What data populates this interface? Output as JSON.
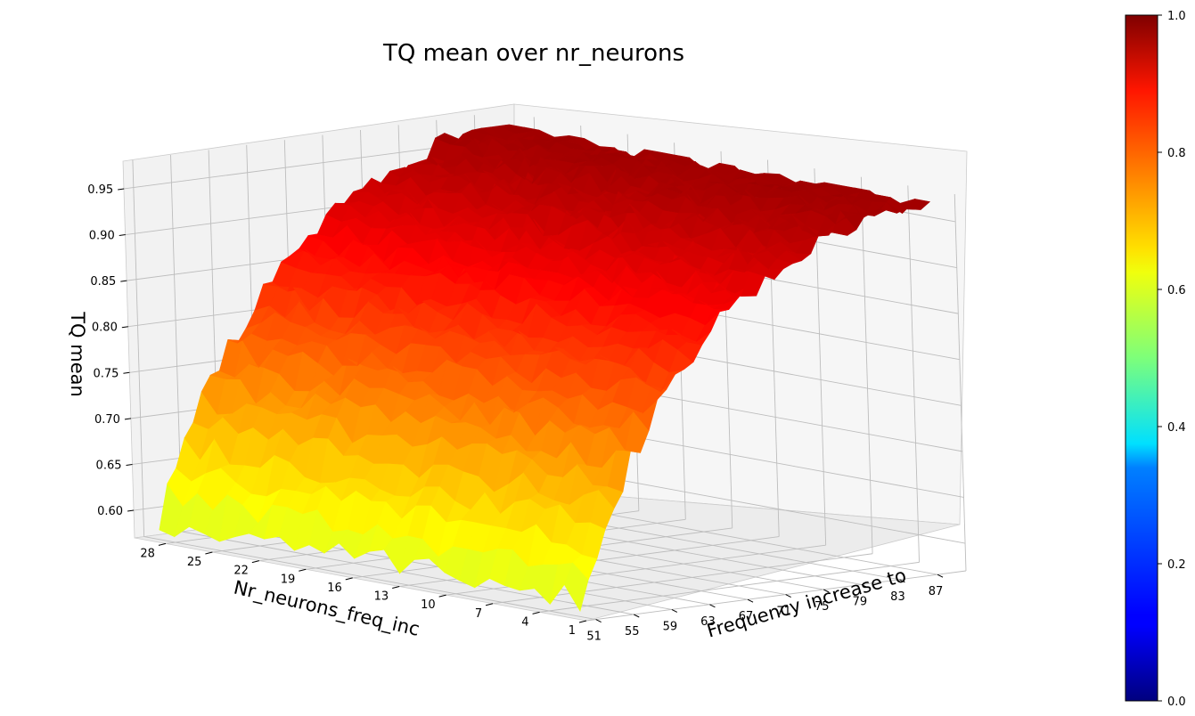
{
  "chart_data": {
    "type": "surface3d",
    "title": "TQ mean over nr_neurons",
    "xlabel": "Nr_neurons_freq_inc",
    "ylabel": "Frequency increase to",
    "zlabel": "TQ mean",
    "x_ticks": [
      "28",
      "25",
      "22",
      "19",
      "16",
      "13",
      "10",
      "7",
      "4",
      "1"
    ],
    "y_ticks": [
      "51",
      "55",
      "59",
      "63",
      "67",
      "71",
      "75",
      "79",
      "83",
      "87"
    ],
    "z_ticks": [
      "0.60",
      "0.65",
      "0.70",
      "0.75",
      "0.80",
      "0.85",
      "0.90",
      "0.95"
    ],
    "xlim": [
      1,
      30
    ],
    "ylim": [
      50,
      90
    ],
    "zlim": [
      0.57,
      0.98
    ],
    "colormap": "jet",
    "colorbar": {
      "min": 0.0,
      "max": 1.0,
      "ticks": [
        "0.0",
        "0.2",
        "0.4",
        "0.6",
        "0.8",
        "1.0"
      ]
    },
    "grid": true,
    "surface_description": {
      "x_values": [
        1,
        4,
        7,
        10,
        13,
        16,
        19,
        22,
        25,
        28
      ],
      "y_values": [
        51,
        55,
        59,
        63,
        67,
        71,
        75,
        79,
        83,
        87
      ],
      "z_min": 0.59,
      "z_max": 0.97
    }
  }
}
